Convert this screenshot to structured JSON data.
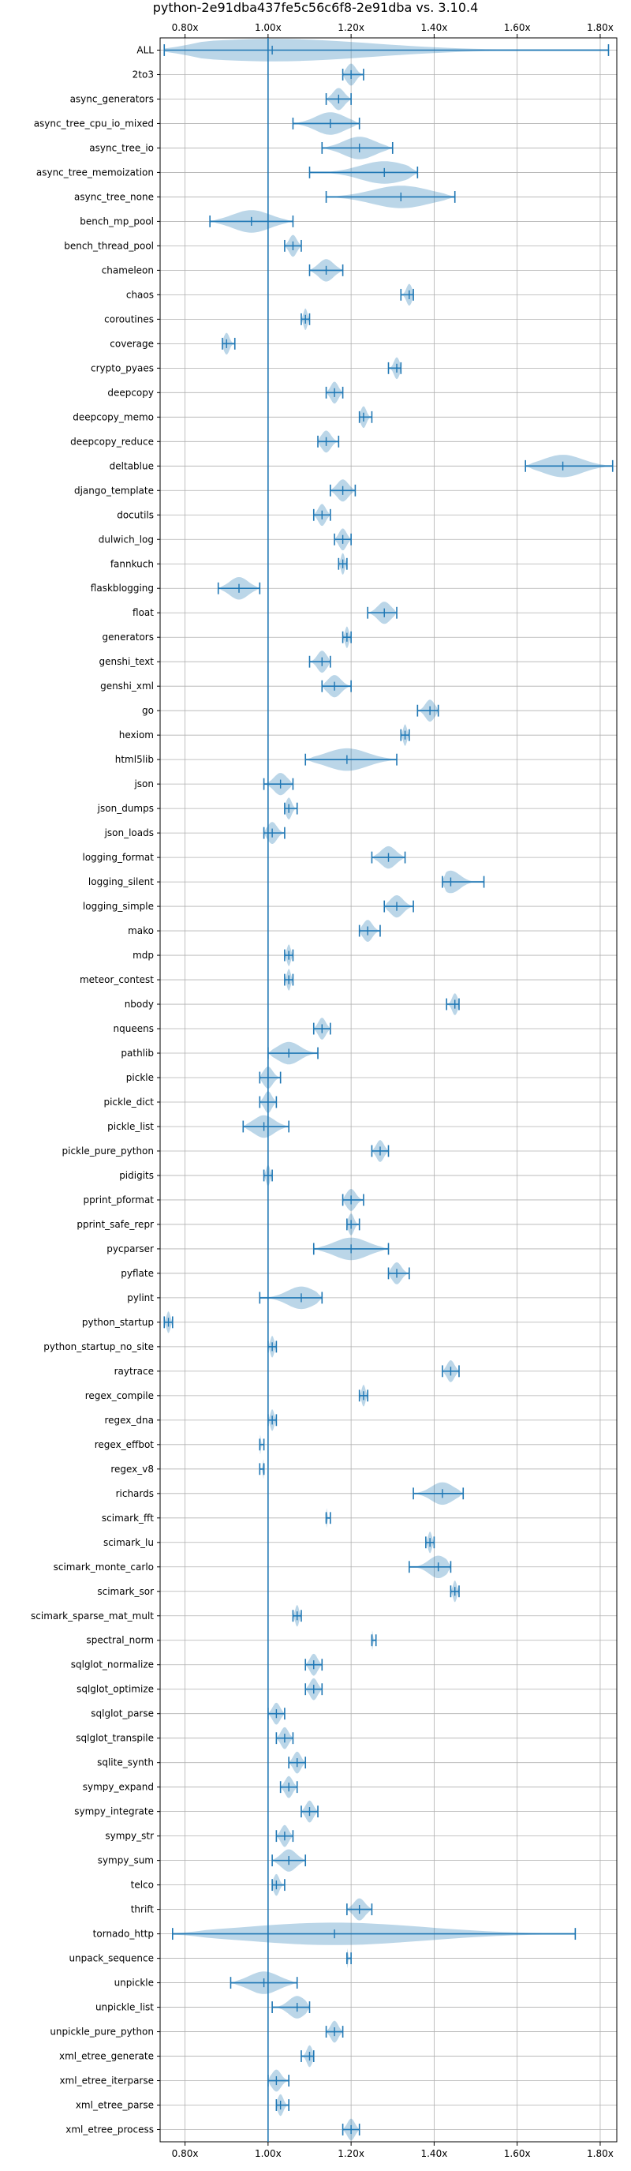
{
  "chart_data": {
    "type": "violin",
    "title": "python-2e91dba437fe5c56c6f8-2e91dba vs. 3.10.4",
    "xlabel": "",
    "ylabel": "",
    "xlim": [
      0.74,
      1.84
    ],
    "x_ticks": [
      "0.80x",
      "1.00x",
      "1.20x",
      "1.40x",
      "1.60x",
      "1.80x"
    ],
    "x_tick_values": [
      0.8,
      1.0,
      1.2,
      1.4,
      1.6,
      1.8
    ],
    "reference_line": 1.0,
    "grid": true,
    "ticks_top_and_bottom": true,
    "colors": {
      "line": "#1f77b4",
      "violin": "#1f77b4",
      "grid": "#b0b0b0"
    },
    "benchmarks": [
      {
        "name": "ALL",
        "min": 0.75,
        "median": 1.01,
        "max": 1.82
      },
      {
        "name": "2to3",
        "min": 1.18,
        "median": 1.2,
        "max": 1.23
      },
      {
        "name": "async_generators",
        "min": 1.14,
        "median": 1.17,
        "max": 1.2
      },
      {
        "name": "async_tree_cpu_io_mixed",
        "min": 1.06,
        "median": 1.15,
        "max": 1.22
      },
      {
        "name": "async_tree_io",
        "min": 1.13,
        "median": 1.22,
        "max": 1.3
      },
      {
        "name": "async_tree_memoization",
        "min": 1.1,
        "median": 1.28,
        "max": 1.36
      },
      {
        "name": "async_tree_none",
        "min": 1.14,
        "median": 1.32,
        "max": 1.45
      },
      {
        "name": "bench_mp_pool",
        "min": 0.86,
        "median": 0.96,
        "max": 1.06
      },
      {
        "name": "bench_thread_pool",
        "min": 1.04,
        "median": 1.06,
        "max": 1.08
      },
      {
        "name": "chameleon",
        "min": 1.1,
        "median": 1.14,
        "max": 1.18
      },
      {
        "name": "chaos",
        "min": 1.32,
        "median": 1.34,
        "max": 1.35
      },
      {
        "name": "coroutines",
        "min": 1.08,
        "median": 1.09,
        "max": 1.1
      },
      {
        "name": "coverage",
        "min": 0.89,
        "median": 0.9,
        "max": 0.92
      },
      {
        "name": "crypto_pyaes",
        "min": 1.29,
        "median": 1.31,
        "max": 1.32
      },
      {
        "name": "deepcopy",
        "min": 1.14,
        "median": 1.16,
        "max": 1.18
      },
      {
        "name": "deepcopy_memo",
        "min": 1.22,
        "median": 1.23,
        "max": 1.25
      },
      {
        "name": "deepcopy_reduce",
        "min": 1.12,
        "median": 1.14,
        "max": 1.17
      },
      {
        "name": "deltablue",
        "min": 1.62,
        "median": 1.71,
        "max": 1.83
      },
      {
        "name": "django_template",
        "min": 1.15,
        "median": 1.18,
        "max": 1.21
      },
      {
        "name": "docutils",
        "min": 1.11,
        "median": 1.13,
        "max": 1.15
      },
      {
        "name": "dulwich_log",
        "min": 1.16,
        "median": 1.18,
        "max": 1.2
      },
      {
        "name": "fannkuch",
        "min": 1.17,
        "median": 1.18,
        "max": 1.19
      },
      {
        "name": "flaskblogging",
        "min": 0.88,
        "median": 0.93,
        "max": 0.98
      },
      {
        "name": "float",
        "min": 1.24,
        "median": 1.28,
        "max": 1.31
      },
      {
        "name": "generators",
        "min": 1.18,
        "median": 1.19,
        "max": 1.2
      },
      {
        "name": "genshi_text",
        "min": 1.1,
        "median": 1.13,
        "max": 1.15
      },
      {
        "name": "genshi_xml",
        "min": 1.13,
        "median": 1.16,
        "max": 1.2
      },
      {
        "name": "go",
        "min": 1.36,
        "median": 1.39,
        "max": 1.41
      },
      {
        "name": "hexiom",
        "min": 1.32,
        "median": 1.33,
        "max": 1.34
      },
      {
        "name": "html5lib",
        "min": 1.09,
        "median": 1.19,
        "max": 1.31
      },
      {
        "name": "json",
        "min": 0.99,
        "median": 1.03,
        "max": 1.06
      },
      {
        "name": "json_dumps",
        "min": 1.04,
        "median": 1.05,
        "max": 1.07
      },
      {
        "name": "json_loads",
        "min": 0.99,
        "median": 1.01,
        "max": 1.04
      },
      {
        "name": "logging_format",
        "min": 1.25,
        "median": 1.29,
        "max": 1.33
      },
      {
        "name": "logging_silent",
        "min": 1.42,
        "median": 1.44,
        "max": 1.52
      },
      {
        "name": "logging_simple",
        "min": 1.28,
        "median": 1.31,
        "max": 1.35
      },
      {
        "name": "mako",
        "min": 1.22,
        "median": 1.24,
        "max": 1.27
      },
      {
        "name": "mdp",
        "min": 1.04,
        "median": 1.05,
        "max": 1.06
      },
      {
        "name": "meteor_contest",
        "min": 1.04,
        "median": 1.05,
        "max": 1.06
      },
      {
        "name": "nbody",
        "min": 1.43,
        "median": 1.45,
        "max": 1.46
      },
      {
        "name": "nqueens",
        "min": 1.11,
        "median": 1.13,
        "max": 1.15
      },
      {
        "name": "pathlib",
        "min": 1.0,
        "median": 1.05,
        "max": 1.12
      },
      {
        "name": "pickle",
        "min": 0.98,
        "median": 1.0,
        "max": 1.03
      },
      {
        "name": "pickle_dict",
        "min": 0.98,
        "median": 1.0,
        "max": 1.02
      },
      {
        "name": "pickle_list",
        "min": 0.94,
        "median": 0.99,
        "max": 1.05
      },
      {
        "name": "pickle_pure_python",
        "min": 1.25,
        "median": 1.27,
        "max": 1.29
      },
      {
        "name": "pidigits",
        "min": 0.99,
        "median": 1.0,
        "max": 1.01
      },
      {
        "name": "pprint_pformat",
        "min": 1.18,
        "median": 1.2,
        "max": 1.23
      },
      {
        "name": "pprint_safe_repr",
        "min": 1.19,
        "median": 1.2,
        "max": 1.22
      },
      {
        "name": "pycparser",
        "min": 1.11,
        "median": 1.2,
        "max": 1.29
      },
      {
        "name": "pyflate",
        "min": 1.29,
        "median": 1.31,
        "max": 1.34
      },
      {
        "name": "pylint",
        "min": 0.98,
        "median": 1.08,
        "max": 1.13
      },
      {
        "name": "python_startup",
        "min": 0.75,
        "median": 0.76,
        "max": 0.77
      },
      {
        "name": "python_startup_no_site",
        "min": 1.0,
        "median": 1.01,
        "max": 1.02
      },
      {
        "name": "raytrace",
        "min": 1.42,
        "median": 1.44,
        "max": 1.46
      },
      {
        "name": "regex_compile",
        "min": 1.22,
        "median": 1.23,
        "max": 1.24
      },
      {
        "name": "regex_dna",
        "min": 1.0,
        "median": 1.01,
        "max": 1.02
      },
      {
        "name": "regex_effbot",
        "min": 0.98,
        "median": 0.98,
        "max": 0.99
      },
      {
        "name": "regex_v8",
        "min": 0.98,
        "median": 0.99,
        "max": 0.99
      },
      {
        "name": "richards",
        "min": 1.35,
        "median": 1.42,
        "max": 1.47
      },
      {
        "name": "scimark_fft",
        "min": 1.14,
        "median": 1.14,
        "max": 1.15
      },
      {
        "name": "scimark_lu",
        "min": 1.38,
        "median": 1.39,
        "max": 1.4
      },
      {
        "name": "scimark_monte_carlo",
        "min": 1.34,
        "median": 1.41,
        "max": 1.44
      },
      {
        "name": "scimark_sor",
        "min": 1.44,
        "median": 1.45,
        "max": 1.46
      },
      {
        "name": "scimark_sparse_mat_mult",
        "min": 1.06,
        "median": 1.07,
        "max": 1.08
      },
      {
        "name": "spectral_norm",
        "min": 1.25,
        "median": 1.25,
        "max": 1.26
      },
      {
        "name": "sqlglot_normalize",
        "min": 1.09,
        "median": 1.11,
        "max": 1.13
      },
      {
        "name": "sqlglot_optimize",
        "min": 1.09,
        "median": 1.11,
        "max": 1.13
      },
      {
        "name": "sqlglot_parse",
        "min": 1.0,
        "median": 1.02,
        "max": 1.04
      },
      {
        "name": "sqlglot_transpile",
        "min": 1.02,
        "median": 1.04,
        "max": 1.06
      },
      {
        "name": "sqlite_synth",
        "min": 1.05,
        "median": 1.07,
        "max": 1.09
      },
      {
        "name": "sympy_expand",
        "min": 1.03,
        "median": 1.05,
        "max": 1.07
      },
      {
        "name": "sympy_integrate",
        "min": 1.08,
        "median": 1.1,
        "max": 1.12
      },
      {
        "name": "sympy_str",
        "min": 1.02,
        "median": 1.04,
        "max": 1.06
      },
      {
        "name": "sympy_sum",
        "min": 1.01,
        "median": 1.05,
        "max": 1.09
      },
      {
        "name": "telco",
        "min": 1.01,
        "median": 1.02,
        "max": 1.04
      },
      {
        "name": "thrift",
        "min": 1.19,
        "median": 1.22,
        "max": 1.25
      },
      {
        "name": "tornado_http",
        "min": 0.77,
        "median": 1.16,
        "max": 1.74
      },
      {
        "name": "unpack_sequence",
        "min": 1.19,
        "median": 1.19,
        "max": 1.2
      },
      {
        "name": "unpickle",
        "min": 0.91,
        "median": 0.99,
        "max": 1.07
      },
      {
        "name": "unpickle_list",
        "min": 1.01,
        "median": 1.07,
        "max": 1.1
      },
      {
        "name": "unpickle_pure_python",
        "min": 1.14,
        "median": 1.16,
        "max": 1.18
      },
      {
        "name": "xml_etree_generate",
        "min": 1.08,
        "median": 1.1,
        "max": 1.11
      },
      {
        "name": "xml_etree_iterparse",
        "min": 1.0,
        "median": 1.02,
        "max": 1.05
      },
      {
        "name": "xml_etree_parse",
        "min": 1.02,
        "median": 1.03,
        "max": 1.05
      },
      {
        "name": "xml_etree_process",
        "min": 1.18,
        "median": 1.2,
        "max": 1.22
      }
    ]
  }
}
